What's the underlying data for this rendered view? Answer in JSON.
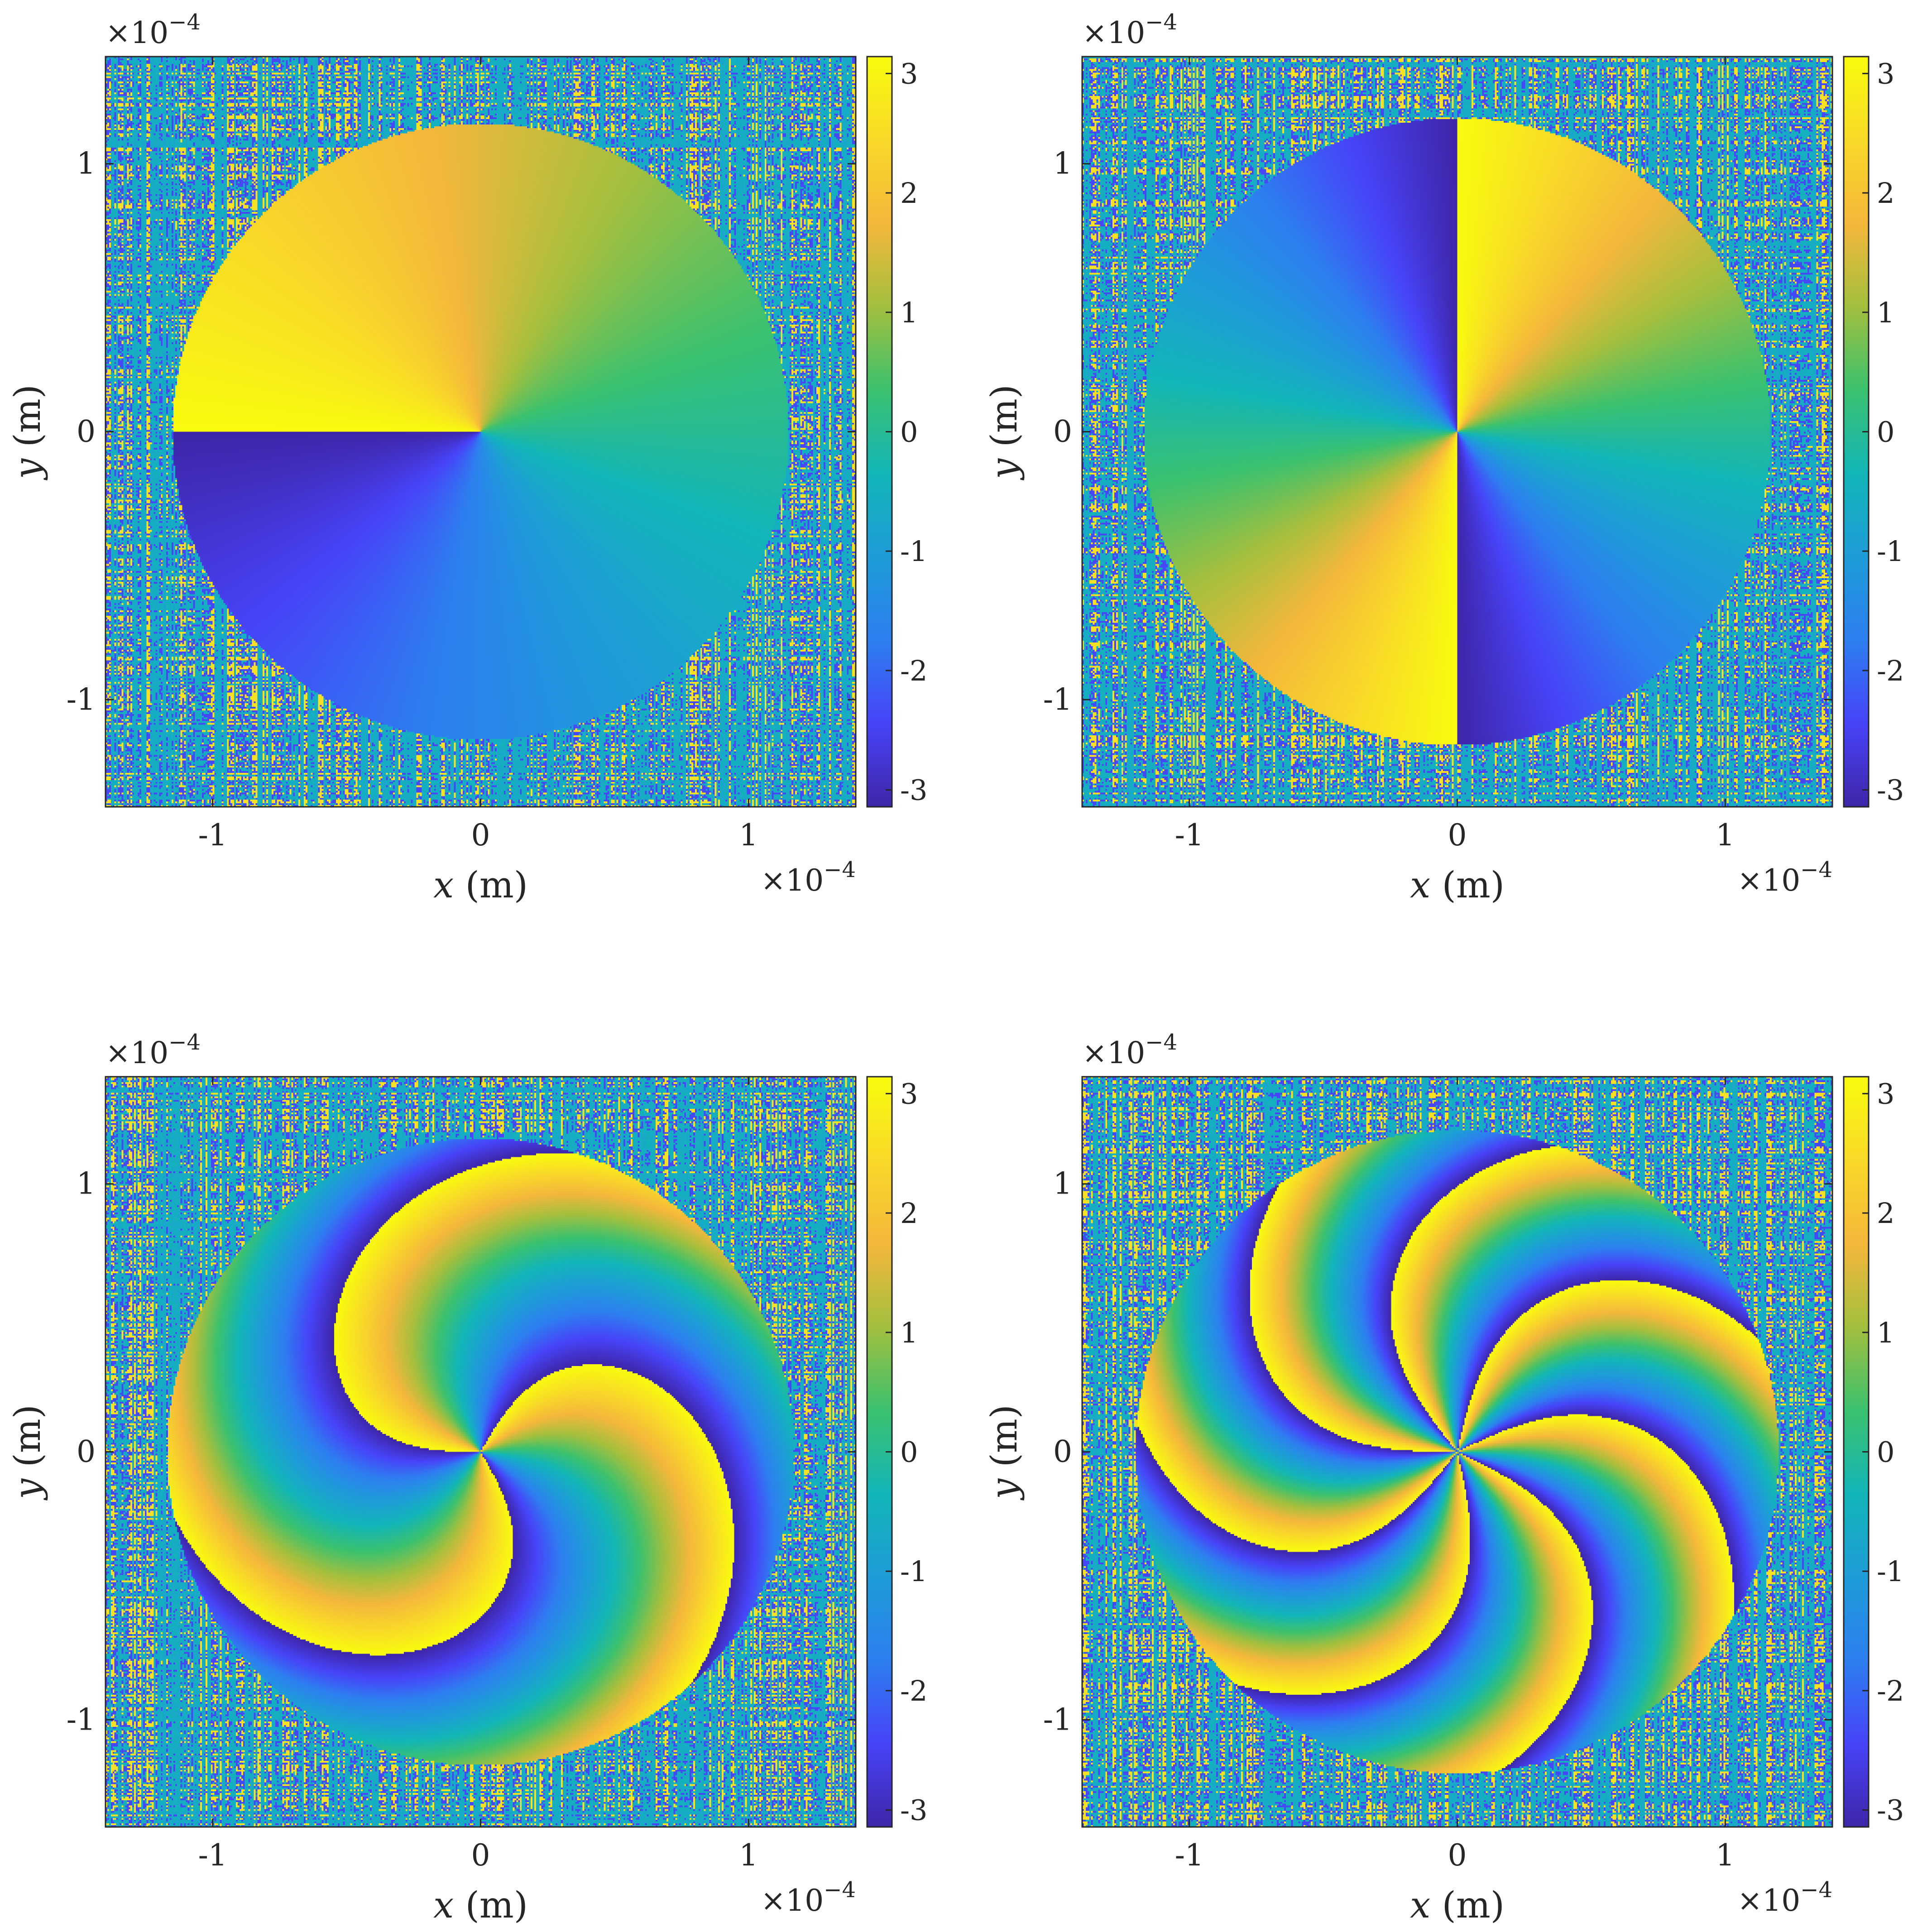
{
  "figure": {
    "colormap": "parula",
    "colors": {
      "parula_stops": [
        "#3e26a8",
        "#4743f8",
        "#2d7ff0",
        "#1e9cd8",
        "#12b5b8",
        "#3bc16e",
        "#a3bf3e",
        "#f5b73b",
        "#f8d928",
        "#f9fb0e"
      ],
      "axis": "#262626",
      "frame": "#262626"
    }
  },
  "chart_data": [
    {
      "type": "heatmap",
      "panel": "top-left",
      "field": "phase",
      "xlabel_var": "x",
      "xlabel_unit": " (m)",
      "ylabel_var": "y",
      "ylabel_unit": " (m)",
      "x_exponent_base": "×10",
      "x_exponent": "−4",
      "y_exponent_base": "×10",
      "y_exponent": "−4",
      "xlim": [
        -1.4,
        1.4
      ],
      "ylim": [
        -1.4,
        1.4
      ],
      "x_scale_factor": "1e-4",
      "y_scale_factor": "1e-4",
      "xticks": [
        -1,
        0,
        1
      ],
      "xtick_labels": [
        "-1",
        "0",
        "1"
      ],
      "yticks": [
        -1,
        0,
        1
      ],
      "ytick_labels": [
        "-1",
        "0",
        "1"
      ],
      "clim": [
        -3.14159,
        3.14159
      ],
      "colorbar_ticks": [
        3,
        2,
        1,
        0,
        -1,
        -2,
        -3
      ],
      "colorbar_tick_labels": [
        "3",
        "2",
        "1",
        "0",
        "-1",
        "-2",
        "-3"
      ],
      "topological_charge": 1,
      "aperture_radius": 1.15,
      "spiral_twist": 0,
      "noise_outside_aperture": true
    },
    {
      "type": "heatmap",
      "panel": "top-right",
      "field": "phase",
      "xlabel_var": "x",
      "xlabel_unit": " (m)",
      "ylabel_var": "y",
      "ylabel_unit": " (m)",
      "x_exponent_base": "×10",
      "x_exponent": "−4",
      "y_exponent_base": "×10",
      "y_exponent": "−4",
      "xlim": [
        -1.4,
        1.4
      ],
      "ylim": [
        -1.4,
        1.4
      ],
      "x_scale_factor": "1e-4",
      "y_scale_factor": "1e-4",
      "xticks": [
        -1,
        0,
        1
      ],
      "xtick_labels": [
        "-1",
        "0",
        "1"
      ],
      "yticks": [
        -1,
        0,
        1
      ],
      "ytick_labels": [
        "-1",
        "0",
        "1"
      ],
      "clim": [
        -3.14159,
        3.14159
      ],
      "colorbar_ticks": [
        3,
        2,
        1,
        0,
        -1,
        -2,
        -3
      ],
      "colorbar_tick_labels": [
        "3",
        "2",
        "1",
        "0",
        "-1",
        "-2",
        "-3"
      ],
      "topological_charge": 2,
      "aperture_radius": 1.17,
      "spiral_twist": 0,
      "noise_outside_aperture": true
    },
    {
      "type": "heatmap",
      "panel": "bottom-left",
      "field": "phase",
      "xlabel_var": "x",
      "xlabel_unit": " (m)",
      "ylabel_var": "y",
      "ylabel_unit": " (m)",
      "x_exponent_base": "×10",
      "x_exponent": "−4",
      "y_exponent_base": "×10",
      "y_exponent": "−4",
      "xlim": [
        -1.4,
        1.4
      ],
      "ylim": [
        -1.4,
        1.4
      ],
      "x_scale_factor": "1e-4",
      "y_scale_factor": "1e-4",
      "xticks": [
        -1,
        0,
        1
      ],
      "xtick_labels": [
        "-1",
        "0",
        "1"
      ],
      "yticks": [
        -1,
        0,
        1
      ],
      "ytick_labels": [
        "-1",
        "0",
        "1"
      ],
      "clim": [
        -3.14159,
        3.14159
      ],
      "colorbar_ticks": [
        3,
        2,
        1,
        0,
        -1,
        -2,
        -3
      ],
      "colorbar_tick_labels": [
        "3",
        "2",
        "1",
        "0",
        "-1",
        "-2",
        "-3"
      ],
      "topological_charge": 3,
      "aperture_radius": 1.17,
      "spiral_twist": 0.9,
      "noise_outside_aperture": true
    },
    {
      "type": "heatmap",
      "panel": "bottom-right",
      "field": "phase",
      "xlabel_var": "x",
      "xlabel_unit": " (m)",
      "ylabel_var": "y",
      "ylabel_unit": " (m)",
      "x_exponent_base": "×10",
      "x_exponent": "−4",
      "y_exponent_base": "×10",
      "y_exponent": "−4",
      "xlim": [
        -1.4,
        1.4
      ],
      "ylim": [
        -1.4,
        1.4
      ],
      "x_scale_factor": "1e-4",
      "y_scale_factor": "1e-4",
      "xticks": [
        -1,
        0,
        1
      ],
      "xtick_labels": [
        "-1",
        "0",
        "1"
      ],
      "yticks": [
        -1,
        0,
        1
      ],
      "ytick_labels": [
        "-1",
        "0",
        "1"
      ],
      "clim": [
        -3.14159,
        3.14159
      ],
      "colorbar_ticks": [
        3,
        2,
        1,
        0,
        -1,
        -2,
        -3
      ],
      "colorbar_tick_labels": [
        "3",
        "2",
        "1",
        "0",
        "-1",
        "-2",
        "-3"
      ],
      "topological_charge": 7,
      "aperture_radius": 1.2,
      "spiral_twist": 1.1,
      "noise_outside_aperture": true
    }
  ]
}
